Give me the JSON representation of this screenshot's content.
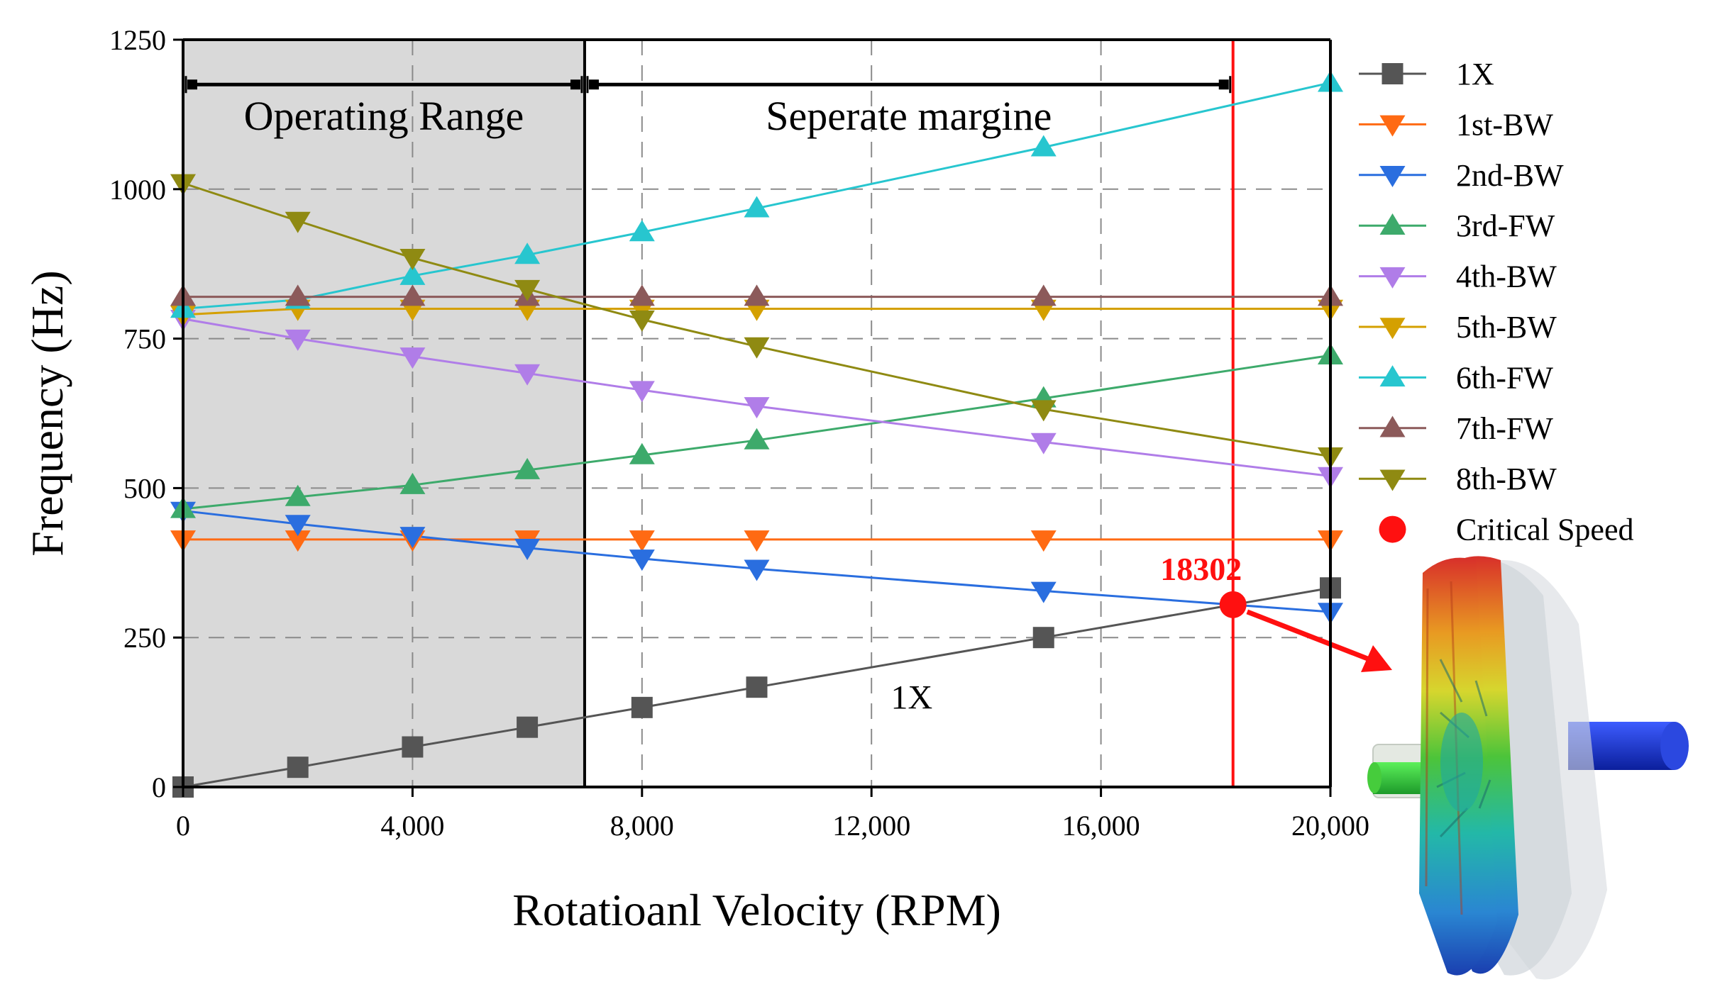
{
  "chart_data": {
    "type": "line",
    "title": "",
    "xlabel": "Rotatioanl Velocity (RPM)",
    "ylabel": "Frequency (Hz)",
    "xlim": [
      0,
      20000
    ],
    "ylim": [
      0,
      1250
    ],
    "xticks": [
      0,
      4000,
      8000,
      12000,
      16000,
      20000
    ],
    "xtick_labels": [
      "0",
      "4,000",
      "8,000",
      "12,000",
      "16,000",
      "20,000"
    ],
    "yticks": [
      0,
      250,
      500,
      750,
      1000,
      1250
    ],
    "ytick_labels": [
      "0",
      "250",
      "500",
      "750",
      "1000",
      "1250"
    ],
    "grid": "dashed",
    "x": [
      0,
      2000,
      4000,
      6000,
      8000,
      10000,
      15000,
      20000
    ],
    "series": [
      {
        "name": "1X",
        "marker": "square",
        "color": "#555555",
        "values": [
          0,
          33,
          67,
          100,
          133,
          167,
          250,
          333
        ]
      },
      {
        "name": "1st-BW",
        "marker": "triangle-down",
        "color": "#ff6a13",
        "values": [
          414,
          414,
          414,
          414,
          414,
          414,
          414,
          414
        ]
      },
      {
        "name": "2nd-BW",
        "marker": "triangle-down",
        "color": "#2a6edf",
        "values": [
          462,
          440,
          420,
          400,
          382,
          365,
          328,
          293
        ]
      },
      {
        "name": "3rd-FW",
        "marker": "triangle-up",
        "color": "#3daa6b",
        "values": [
          465,
          485,
          505,
          530,
          555,
          580,
          650,
          722
        ]
      },
      {
        "name": "4th-BW",
        "marker": "triangle-down",
        "color": "#b07de8",
        "values": [
          783,
          750,
          720,
          692,
          664,
          637,
          577,
          520
        ]
      },
      {
        "name": "5th-BW",
        "marker": "triangle-down",
        "color": "#d4a000",
        "values": [
          790,
          800,
          800,
          800,
          800,
          800,
          800,
          800
        ]
      },
      {
        "name": "6th-FW",
        "marker": "triangle-up",
        "color": "#27c6cf",
        "values": [
          800,
          815,
          855,
          890,
          928,
          968,
          1070,
          1178
        ]
      },
      {
        "name": "7th-FW",
        "marker": "triangle-up",
        "color": "#8c5a5a",
        "values": [
          820,
          820,
          820,
          820,
          820,
          820,
          820,
          820
        ]
      },
      {
        "name": "8th-BW",
        "marker": "triangle-down",
        "color": "#8f8a12",
        "values": [
          1010,
          947,
          885,
          833,
          782,
          737,
          632,
          553
        ]
      }
    ],
    "critical_speed": {
      "name": "Critical Speed",
      "x": 18302,
      "y": 305,
      "label": "18302",
      "color": "#ff1010"
    },
    "operating_range": {
      "label": "Operating Range",
      "x_start": 0,
      "x_end": 7000,
      "shade": "#d9d9d9"
    },
    "separation_margin": {
      "label": "Seperate margine",
      "x_start": 7000,
      "x_end": 18302
    },
    "range_arrow_y": 1175,
    "annotations": [
      {
        "text": "1X",
        "x": 12700,
        "y": 150
      }
    ],
    "legend_position": "right"
  }
}
